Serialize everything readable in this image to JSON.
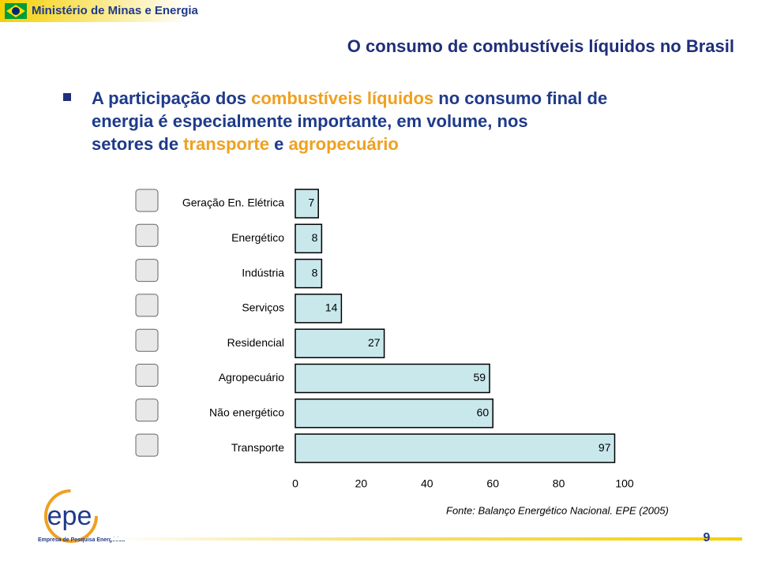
{
  "header": {
    "ministry": "Ministério de Minas e Energia",
    "title": "O consumo de combustíveis líquidos no Brasil"
  },
  "bullet": {
    "lines": [
      [
        {
          "text": "A participação dos ",
          "color": "#1f3a8a"
        },
        {
          "text": "combustíveis líquidos",
          "color": "#f0a020"
        },
        {
          "text": " no consumo final de",
          "color": "#1f3a8a"
        }
      ],
      [
        {
          "text": "energia é especialmente importante, em volume, nos",
          "color": "#1f3a8a"
        }
      ],
      [
        {
          "text": "setores de ",
          "color": "#1f3a8a"
        },
        {
          "text": "transporte",
          "color": "#f0a020"
        },
        {
          "text": " e ",
          "color": "#1f3a8a"
        },
        {
          "text": "agropecuário",
          "color": "#f0a020"
        }
      ]
    ]
  },
  "chart_data": {
    "type": "bar",
    "orientation": "horizontal",
    "categories": [
      "Geração En. Elétrica",
      "Energético",
      "Indústria",
      "Serviços",
      "Residencial",
      "Agropecuário",
      "Não energético",
      "Transporte"
    ],
    "values": [
      7,
      8,
      8,
      14,
      27,
      59,
      60,
      97
    ],
    "color": "#c9e8ec",
    "xlim": [
      0,
      100
    ],
    "xticks": [
      0,
      20,
      40,
      60,
      80,
      100
    ]
  },
  "footer": {
    "logo": "epe",
    "company": "Empresa de Pesquisa Energética",
    "source": "Fonte: Balanço Energético Nacional. EPE (2005)",
    "page": 9
  }
}
